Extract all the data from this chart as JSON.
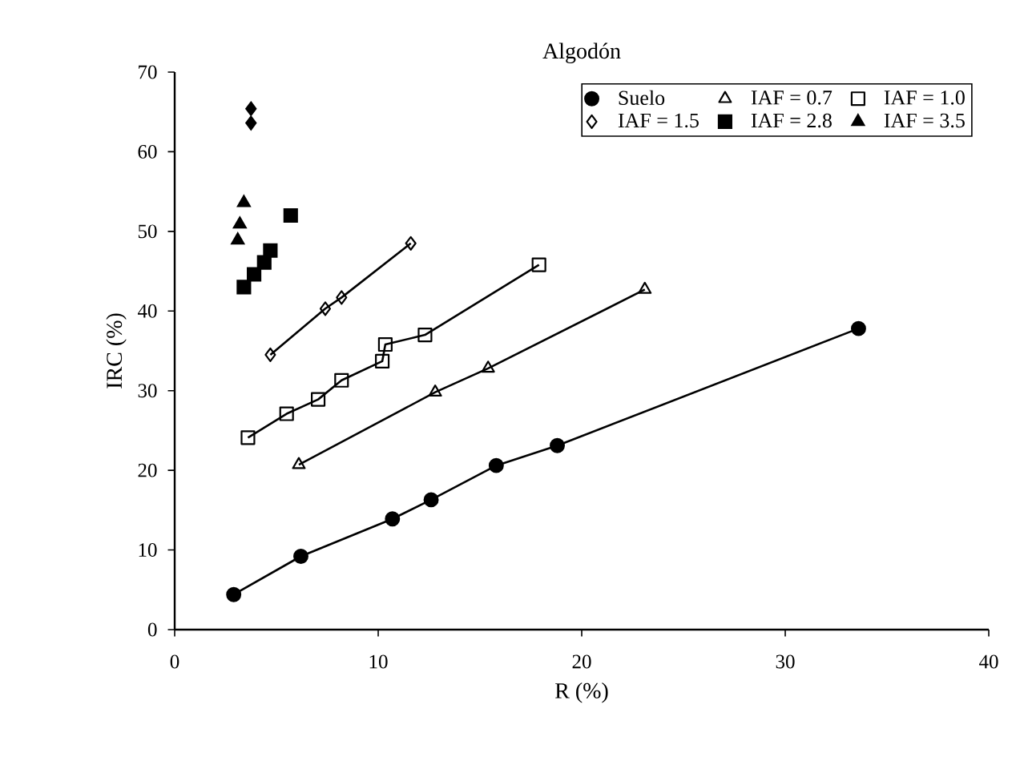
{
  "chart_data": {
    "type": "line",
    "title": "Algodón",
    "xlabel": "R (%)",
    "ylabel": "IRC (%)",
    "xlim": [
      0,
      40
    ],
    "xticks": [
      0,
      10,
      20,
      30,
      40
    ],
    "ylim": [
      0,
      70
    ],
    "yticks": [
      0,
      10,
      20,
      30,
      40,
      50,
      60,
      70
    ],
    "grid": false,
    "legend": "top right",
    "series": [
      {
        "name": "Suelo",
        "marker": "circle",
        "color": "#000000",
        "x": [
          2.9,
          6.2,
          10.7,
          12.6,
          15.8,
          18.8,
          33.6
        ],
        "values": [
          4.4,
          9.2,
          13.9,
          16.3,
          20.6,
          23.1,
          37.8
        ]
      },
      {
        "name": "IAF = 0.7",
        "marker": "triangle",
        "color": "#000000",
        "x": [
          6.1,
          12.8,
          15.4,
          23.1
        ],
        "values": [
          20.7,
          29.8,
          32.8,
          42.7
        ]
      },
      {
        "name": "IAF = 1.0",
        "marker": "square",
        "color": "#000000",
        "x": [
          3.6,
          5.5,
          7.05,
          8.2,
          10.2,
          10.35,
          12.3,
          17.9
        ],
        "values": [
          24.1,
          27.1,
          28.9,
          31.3,
          33.7,
          35.8,
          37.0,
          45.8
        ]
      },
      {
        "name": "IAF = 1.5",
        "marker": "diamond",
        "color": "#000000",
        "x": [
          4.7,
          7.4,
          8.2,
          11.6
        ],
        "values": [
          34.5,
          40.3,
          41.7,
          48.5
        ]
      },
      {
        "name": "IAF = 2.8",
        "type": "scatter",
        "marker": "square",
        "color": "#000000",
        "x": [
          3.4,
          3.9,
          4.4,
          4.7,
          5.7
        ],
        "values": [
          43.0,
          44.6,
          46.1,
          47.6,
          52.0
        ]
      },
      {
        "name": "IAF = 3.5",
        "type": "scatter",
        "marker": "triangle",
        "color": "#000000",
        "x": [
          3.1,
          3.2,
          3.4
        ],
        "values": [
          48.9,
          50.9,
          53.6
        ]
      },
      {
        "type": "scatter",
        "marker": "diamond",
        "color": "#000000",
        "x": [
          3.75,
          3.75
        ],
        "values": [
          63.6,
          65.4
        ]
      }
    ]
  }
}
